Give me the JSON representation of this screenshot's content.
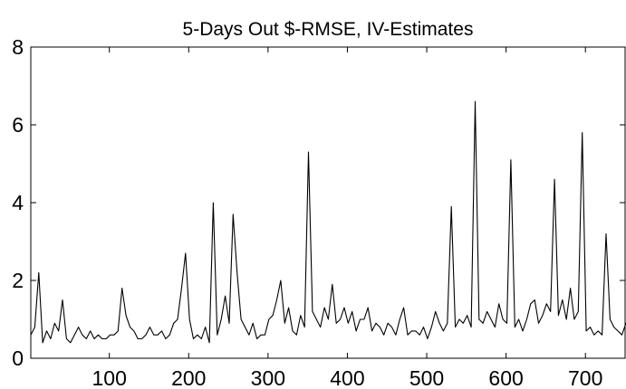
{
  "chart_data": {
    "type": "line",
    "title": "5-Days Out $-RMSE, IV-Estimates",
    "xlabel": "",
    "ylabel": "",
    "xlim": [
      1,
      750
    ],
    "ylim": [
      0,
      8
    ],
    "x_ticks": [
      100,
      200,
      300,
      400,
      500,
      600,
      700
    ],
    "y_ticks": [
      0,
      2,
      4,
      6,
      8
    ],
    "grid": false,
    "legend": "none",
    "line_color": "#000000",
    "series": [
      {
        "x_start": 1,
        "x_step": 5,
        "values": [
          0.6,
          0.8,
          2.2,
          0.4,
          0.7,
          0.5,
          0.9,
          0.7,
          1.5,
          0.5,
          0.4,
          0.6,
          0.8,
          0.6,
          0.5,
          0.7,
          0.5,
          0.6,
          0.5,
          0.5,
          0.6,
          0.6,
          0.7,
          1.8,
          1.1,
          0.8,
          0.7,
          0.5,
          0.5,
          0.6,
          0.8,
          0.6,
          0.6,
          0.7,
          0.5,
          0.6,
          0.9,
          1.0,
          1.8,
          2.7,
          1.0,
          0.5,
          0.6,
          0.5,
          0.8,
          0.4,
          4.0,
          0.6,
          1.0,
          1.6,
          0.9,
          3.7,
          2.2,
          1.0,
          0.8,
          0.6,
          0.9,
          0.5,
          0.6,
          0.6,
          1.0,
          1.1,
          1.5,
          2.0,
          0.9,
          1.3,
          0.7,
          0.6,
          1.1,
          0.8,
          5.3,
          1.2,
          1.0,
          0.8,
          1.3,
          1.0,
          1.9,
          0.9,
          1.0,
          1.3,
          0.9,
          1.2,
          0.7,
          1.0,
          1.0,
          1.3,
          0.7,
          0.9,
          0.8,
          0.6,
          0.9,
          0.8,
          0.6,
          1.0,
          1.3,
          0.6,
          0.7,
          0.7,
          0.6,
          0.8,
          0.5,
          0.8,
          1.2,
          0.9,
          0.7,
          0.9,
          3.9,
          0.8,
          1.0,
          0.9,
          1.1,
          0.8,
          6.6,
          1.0,
          0.9,
          1.2,
          1.0,
          0.8,
          1.4,
          1.0,
          0.9,
          5.1,
          0.8,
          1.0,
          0.7,
          1.0,
          1.4,
          1.5,
          0.9,
          1.1,
          1.4,
          1.2,
          4.6,
          1.1,
          1.5,
          1.0,
          1.8,
          1.0,
          1.2,
          5.8,
          0.7,
          0.8,
          0.6,
          0.7,
          0.6,
          3.2,
          1.0,
          0.8,
          0.7,
          0.6,
          0.9,
          0.6
        ]
      }
    ]
  }
}
